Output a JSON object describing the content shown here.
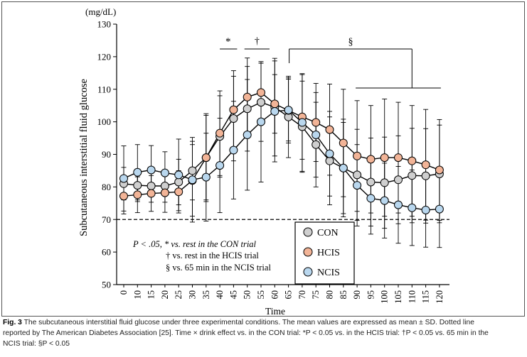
{
  "chart_data": {
    "type": "line",
    "unit_label": "(mg/dL)",
    "ylabel": "Subcutaneous interstitial fluid glucose",
    "xlabel": "Time",
    "ylim": [
      50,
      130
    ],
    "yticks": [
      50,
      60,
      70,
      80,
      90,
      100,
      110,
      120,
      130
    ],
    "x": [
      0,
      10,
      15,
      20,
      25,
      30,
      35,
      40,
      45,
      50,
      55,
      60,
      65,
      70,
      75,
      80,
      85,
      90,
      95,
      100,
      105,
      110,
      115,
      120
    ],
    "reference_line": {
      "y": 70,
      "style": "dotted"
    },
    "series": [
      {
        "name": "CON",
        "color": "#cfcfcf",
        "values": [
          81.0,
          80.5,
          80.3,
          80.3,
          81.5,
          85.0,
          89.0,
          95.5,
          101.0,
          104.0,
          106.0,
          104.5,
          101.5,
          98.5,
          93.0,
          88.0,
          85.8,
          83.7,
          81.5,
          81.3,
          82.2,
          83.5,
          83.4,
          84.0
        ],
        "sd": [
          5,
          5,
          5,
          5,
          7,
          9,
          13,
          12.5,
          13,
          13,
          12,
          15,
          12.5,
          14,
          13,
          13.5,
          14,
          14,
          13.5,
          14,
          13.5,
          14.5,
          14.5,
          15
        ]
      },
      {
        "name": "HCIS",
        "color": "#f2b497",
        "values": [
          77.2,
          77.6,
          78.0,
          78.2,
          78.5,
          82.0,
          89.0,
          96.5,
          103.7,
          107.6,
          109.0,
          105.5,
          103.5,
          101.5,
          99.8,
          97.6,
          93.5,
          89.5,
          88.5,
          89.0,
          89.0,
          88.0,
          86.8,
          85.2
        ],
        "sd": [
          5.5,
          5.5,
          5.5,
          6,
          6.5,
          11,
          13.5,
          13,
          12,
          12,
          9,
          9,
          10,
          13,
          12,
          14,
          16.5,
          17,
          16.5,
          18,
          17,
          17,
          17,
          15.5
        ]
      },
      {
        "name": "NCIS",
        "color": "#b9d7ee",
        "values": [
          82.6,
          84.5,
          85.2,
          84.3,
          83.7,
          82.2,
          83.0,
          86.6,
          91.3,
          96.0,
          100.0,
          103.2,
          103.6,
          99.8,
          96.0,
          90.2,
          85.8,
          80.5,
          76.5,
          75.8,
          74.5,
          73.6,
          72.9,
          73.2
        ],
        "sd": [
          10,
          8.5,
          7.5,
          6.5,
          11,
          13,
          13.5,
          14.5,
          15,
          17,
          18.5,
          15.5,
          9.5,
          15,
          13,
          13,
          15,
          12.5,
          11,
          11.5,
          11.8,
          11.6,
          11.4,
          11.8
        ]
      }
    ],
    "annotations": {
      "star": "*",
      "dagger": "†",
      "section": "§",
      "stats_line1": "P < .05, * vs. rest in the CON trial",
      "stats_line2": "† vs. rest in the HCIS trial",
      "stats_line3": "§ vs. 65 min in the NCIS trial"
    },
    "legend_placement": "bottom-right"
  },
  "caption": {
    "label": "Fig. 3",
    "line1": "The subcutaneous interstitial fluid glucose under three experimental conditions. The mean values are expressed as mean ± SD. Dotted line",
    "line2": "reported by The American Diabetes Association [25]. Time × drink effect vs. in the CON trial: *P < 0.05 vs. in the HCIS trial: †P < 0.05 vs. 65 min in the",
    "line3": "NCIS trial: §P < 0.05"
  }
}
